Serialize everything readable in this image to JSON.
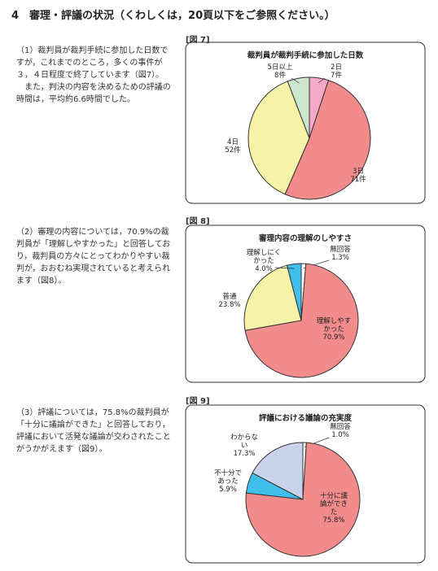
{
  "header": {
    "title": "4　審理・評議の状況（くわしくは，20頁以下をご参照ください。）"
  },
  "sections": [
    {
      "paragraphs": [
        "（1）裁判員が裁判手続に参加した日数ですが，これまでのところ，多くの事件が３，４日程度で終了しています（図7）。",
        "また，判決の内容を決めるための評議の時間は，平均約6.6時間でした。"
      ]
    },
    {
      "paragraphs": [
        "（2）審理の内容については，70.9%の裁判員が「理解しやすかった」と回答しており，裁判員の方々にとってわかりやすい裁判が，おおむね実現されていると考えられます（図8）。"
      ]
    },
    {
      "paragraphs": [
        "（3）評議については，75.8%の裁判員が「十分に議論ができた」と回答しており，評議において活発な議論が交わされたことがうかがえます（図9）。"
      ]
    }
  ],
  "chart_data": [
    {
      "type": "pie",
      "figure": "[図 7]",
      "title": "裁判員が裁判手続に参加した日数",
      "categories": [
        "2日",
        "3日",
        "4日",
        "5日以上"
      ],
      "values": [
        7,
        71,
        52,
        8
      ],
      "value_labels": [
        "7件",
        "71件",
        "52件",
        "8件"
      ],
      "colors": [
        "#f4a9c9",
        "#f28c8c",
        "#f6f3a9",
        "#cde7cf"
      ]
    },
    {
      "type": "pie",
      "figure": "[図 8]",
      "title": "審理内容の理解のしやすさ",
      "categories": [
        "無回答",
        "理解しやすかった",
        "普通",
        "理解しにくかった"
      ],
      "values": [
        1.3,
        70.9,
        23.8,
        4.0
      ],
      "value_labels": [
        "1.3%",
        "70.9%",
        "23.8%",
        "4.0%"
      ],
      "colors": [
        "#ffffff",
        "#f28c8c",
        "#f6f3a9",
        "#3fbfea"
      ]
    },
    {
      "type": "pie",
      "figure": "[図 9]",
      "title": "評議における議論の充実度",
      "categories": [
        "無回答",
        "十分に議論ができた",
        "不十分であった",
        "わからない"
      ],
      "values": [
        1.0,
        75.8,
        5.9,
        17.3
      ],
      "value_labels": [
        "1.0%",
        "75.8%",
        "5.9%",
        "17.3%"
      ],
      "colors": [
        "#ffffff",
        "#f28c8c",
        "#3fbfea",
        "#c9d4ec"
      ]
    }
  ]
}
